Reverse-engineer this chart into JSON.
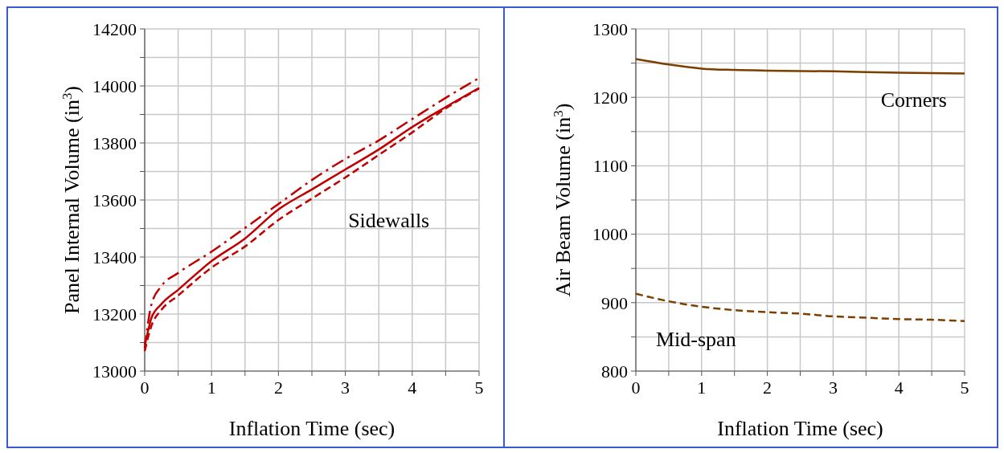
{
  "chart_data": [
    {
      "type": "line",
      "xlabel": "Inflation Time (sec)",
      "ylabel": "Panel Internal Volume (in$^{3}$)",
      "xlim": [
        0,
        5
      ],
      "ylim": [
        13000,
        14200
      ],
      "xticks": [
        0,
        {
          "value": 0.5,
          "label": null
        },
        1,
        {
          "value": 1.5,
          "label": null
        },
        2,
        {
          "value": 2.5,
          "label": null
        },
        3,
        {
          "value": 3.5,
          "label": null
        },
        4,
        {
          "value": 4.5,
          "label": null
        },
        5
      ],
      "yticks": [
        13000,
        {
          "value": 13100,
          "label": null
        },
        13200,
        {
          "value": 13300,
          "label": null
        },
        13400,
        {
          "value": 13500,
          "label": null
        },
        13600,
        {
          "value": 13700,
          "label": null
        },
        13800,
        {
          "value": 13900,
          "label": null
        },
        14000,
        {
          "value": 14100,
          "label": null
        },
        14200
      ],
      "grid": true,
      "annotations": [
        "Sidewalls"
      ],
      "series": [
        {
          "color": "#c00000",
          "line_style": "solid",
          "x": [
            0,
            0.05,
            0.1,
            0.25,
            0.5,
            1,
            1.5,
            2,
            2.5,
            3,
            3.5,
            4,
            4.5,
            5
          ],
          "values": [
            13093,
            13140,
            13186,
            13235,
            13285,
            13386,
            13465,
            13567,
            13637,
            13707,
            13777,
            13856,
            13926,
            13993
          ]
        },
        {
          "color": "#c00000",
          "line_style": "dashed",
          "x": [
            0,
            0.1,
            0.25,
            0.5,
            1,
            1.5,
            2,
            2.5,
            3,
            3.5,
            4,
            4.5,
            5
          ],
          "values": [
            13070,
            13158,
            13215,
            13265,
            13363,
            13437,
            13530,
            13605,
            13679,
            13758,
            13837,
            13921,
            13991
          ]
        },
        {
          "color": "#c00000",
          "line_style": "dashdot",
          "x": [
            0,
            0.1,
            0.25,
            0.5,
            1,
            1.5,
            2,
            2.5,
            3,
            3.5,
            4,
            4.5,
            5
          ],
          "values": [
            13080,
            13233,
            13298,
            13344,
            13419,
            13502,
            13586,
            13670,
            13744,
            13809,
            13884,
            13958,
            14028
          ]
        }
      ]
    },
    {
      "type": "line",
      "xlabel": "Inflation Time (sec)",
      "ylabel": "Air Beam Volume (in$^{3}$)",
      "xlim": [
        0,
        5
      ],
      "ylim": [
        800,
        1300
      ],
      "xticks": [
        0,
        {
          "value": 0.5,
          "label": null
        },
        1,
        {
          "value": 1.5,
          "label": null
        },
        2,
        {
          "value": 2.5,
          "label": null
        },
        3,
        {
          "value": 3.5,
          "label": null
        },
        4,
        {
          "value": 4.5,
          "label": null
        },
        5
      ],
      "yticks": [
        800,
        {
          "value": 850,
          "label": null
        },
        900,
        {
          "value": 950,
          "label": null
        },
        1000,
        {
          "value": 1050,
          "label": null
        },
        1100,
        {
          "value": 1150,
          "label": null
        },
        1200,
        {
          "value": 1250,
          "label": null
        },
        1300
      ],
      "grid": true,
      "series": [
        {
          "name": "Corners",
          "color": "#7b3f00",
          "line_style": "solid",
          "x": [
            0,
            0.5,
            1,
            1.5,
            2,
            3,
            4,
            5
          ],
          "values": [
            1256,
            1248,
            1242,
            1240,
            1239,
            1238,
            1236,
            1235
          ]
        },
        {
          "name": "Mid-span",
          "color": "#7b3f00",
          "line_style": "dashed",
          "x": [
            0,
            0.5,
            1,
            1.5,
            2,
            2.5,
            3,
            3.5,
            4,
            4.5,
            5
          ],
          "values": [
            913,
            902,
            894,
            889,
            886,
            884,
            880,
            878,
            876,
            875,
            873
          ]
        }
      ]
    }
  ]
}
